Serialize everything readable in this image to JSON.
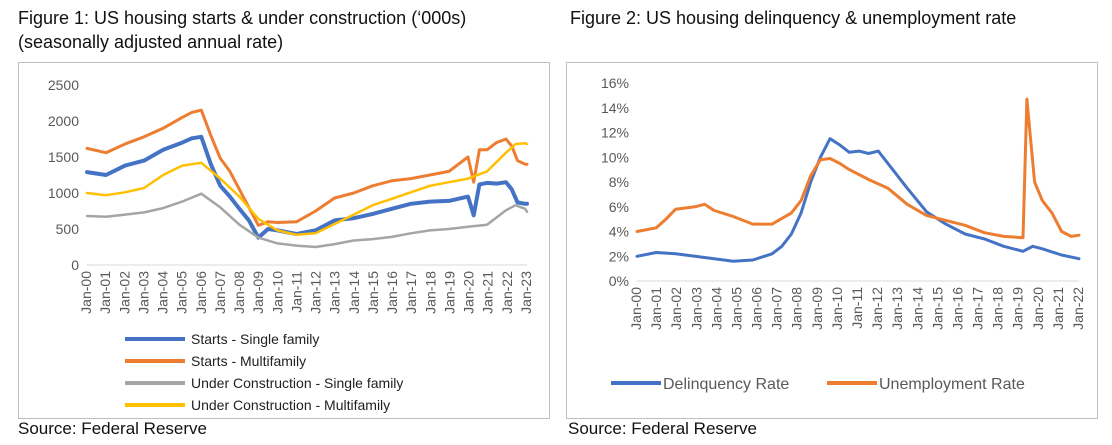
{
  "figure1": {
    "title_line1": "Figure 1: US housing starts & under construction (‘000s)",
    "title_line2": "(seasonally adjusted annual rate)",
    "source": "Source: Federal Reserve"
  },
  "figure2": {
    "title": "Figure 2: US housing delinquency & unemployment rate",
    "source": "Source: Federal Reserve"
  },
  "chart_data": [
    {
      "type": "line",
      "title": "Figure 1: US housing starts & under construction (‘000s)",
      "subtitle": "(seasonally adjusted annual rate)",
      "xlabel": "",
      "ylabel": "",
      "ylim": [
        0,
        2500
      ],
      "yticks": [
        "0",
        "500",
        "1000",
        "1500",
        "2000",
        "2500"
      ],
      "yticks_values": [
        0,
        500,
        1000,
        1500,
        2000,
        2500
      ],
      "xlim": [
        2000,
        2023.1
      ],
      "xticks": [
        "Jan-00",
        "Jan-01",
        "Jan-02",
        "Jan-03",
        "Jan-04",
        "Jan-05",
        "Jan-06",
        "Jan-07",
        "Jan-08",
        "Jan-09",
        "Jan-10",
        "Jan-11",
        "Jan-12",
        "Jan-13",
        "Jan-14",
        "Jan-15",
        "Jan-16",
        "Jan-17",
        "Jan-18",
        "Jan-19",
        "Jan-20",
        "Jan-21",
        "Jan-22",
        "Jan-23"
      ],
      "grid": false,
      "legend": "bottom",
      "series": [
        {
          "name": "Starts - Single family",
          "color": "#4472c4",
          "width": 4,
          "x": [
            2000,
            2001,
            2002,
            2003,
            2004,
            2005,
            2005.5,
            2006,
            2006.5,
            2007,
            2007.5,
            2008,
            2008.5,
            2009,
            2009.5,
            2010,
            2011,
            2012,
            2013,
            2014,
            2015,
            2016,
            2017,
            2018,
            2019,
            2020,
            2020.3,
            2020.6,
            2021,
            2021.5,
            2022,
            2022.3,
            2022.6,
            2023,
            2023.1
          ],
          "y": [
            1290,
            1250,
            1380,
            1450,
            1600,
            1700,
            1760,
            1780,
            1400,
            1100,
            950,
            780,
            620,
            380,
            500,
            480,
            430,
            480,
            620,
            650,
            710,
            780,
            850,
            880,
            890,
            950,
            690,
            1120,
            1140,
            1130,
            1150,
            1050,
            870,
            850,
            850
          ]
        },
        {
          "name": "Starts - Multifamily",
          "color": "#ed7d31",
          "width": 3,
          "x": [
            2000,
            2001,
            2002,
            2003,
            2004,
            2005,
            2005.5,
            2006,
            2006.5,
            2007,
            2007.5,
            2008,
            2008.5,
            2009,
            2009.5,
            2010,
            2011,
            2012,
            2013,
            2014,
            2015,
            2016,
            2017,
            2018,
            2019,
            2020,
            2020.3,
            2020.6,
            2021,
            2021.5,
            2022,
            2022.3,
            2022.6,
            2023,
            2023.1
          ],
          "y": [
            1620,
            1560,
            1680,
            1780,
            1900,
            2050,
            2120,
            2150,
            1800,
            1480,
            1300,
            1050,
            800,
            550,
            600,
            590,
            600,
            750,
            930,
            1000,
            1100,
            1170,
            1200,
            1250,
            1300,
            1500,
            1150,
            1600,
            1600,
            1700,
            1750,
            1650,
            1450,
            1400,
            1400
          ]
        },
        {
          "name": "Under Construction - Single family",
          "color": "#a5a5a5",
          "width": 2.5,
          "x": [
            2000,
            2001,
            2002,
            2003,
            2004,
            2005,
            2006,
            2007,
            2008,
            2009,
            2010,
            2011,
            2012,
            2013,
            2014,
            2015,
            2016,
            2017,
            2018,
            2019,
            2020,
            2021,
            2022,
            2022.5,
            2023,
            2023.1
          ],
          "y": [
            680,
            670,
            700,
            730,
            790,
            880,
            990,
            800,
            560,
            380,
            300,
            270,
            250,
            290,
            340,
            360,
            390,
            440,
            480,
            500,
            530,
            560,
            760,
            830,
            780,
            740
          ]
        },
        {
          "name": "Under Construction - Multifamily",
          "color": "#ffc000",
          "width": 2.5,
          "x": [
            2000,
            2001,
            2002,
            2003,
            2004,
            2005,
            2006,
            2007,
            2008,
            2009,
            2010,
            2011,
            2012,
            2013,
            2014,
            2015,
            2016,
            2017,
            2018,
            2019,
            2020,
            2021,
            2022,
            2022.5,
            2023,
            2023.1
          ],
          "y": [
            1000,
            970,
            1010,
            1070,
            1250,
            1380,
            1420,
            1200,
            950,
            640,
            480,
            420,
            440,
            570,
            700,
            830,
            920,
            1010,
            1100,
            1150,
            1200,
            1300,
            1560,
            1680,
            1690,
            1680
          ]
        }
      ]
    },
    {
      "type": "line",
      "title": "Figure 2: US housing delinquency & unemployment rate",
      "xlabel": "",
      "ylabel": "",
      "ylim": [
        0,
        16
      ],
      "yticks": [
        "0%",
        "2%",
        "4%",
        "6%",
        "8%",
        "10%",
        "12%",
        "14%",
        "16%"
      ],
      "yticks_values": [
        0,
        2,
        4,
        6,
        8,
        10,
        12,
        14,
        16
      ],
      "xlim": [
        2000,
        2022.9
      ],
      "xticks": [
        "Jan-00",
        "Jan-01",
        "Jan-02",
        "Jan-03",
        "Jan-04",
        "Jan-05",
        "Jan-06",
        "Jan-07",
        "Jan-08",
        "Jan-09",
        "Jan-10",
        "Jan-11",
        "Jan-12",
        "Jan-13",
        "Jan-14",
        "Jan-15",
        "Jan-16",
        "Jan-17",
        "Jan-18",
        "Jan-19",
        "Jan-20",
        "Jan-21",
        "Jan-22"
      ],
      "grid": false,
      "legend": "bottom",
      "series": [
        {
          "name": "Delinquency Rate",
          "color": "#4472c4",
          "width": 3,
          "x": [
            2000,
            2001,
            2002,
            2003,
            2004,
            2005,
            2006,
            2007,
            2007.5,
            2008,
            2008.5,
            2009,
            2009.5,
            2010,
            2010.5,
            2011,
            2011.5,
            2012,
            2012.5,
            2013,
            2014,
            2015,
            2016,
            2017,
            2018,
            2019,
            2020,
            2020.5,
            2021,
            2022,
            2022.9
          ],
          "y": [
            2.0,
            2.3,
            2.2,
            2.0,
            1.8,
            1.6,
            1.7,
            2.2,
            2.8,
            3.8,
            5.5,
            8.0,
            10.0,
            11.5,
            11.0,
            10.4,
            10.5,
            10.3,
            10.5,
            9.5,
            7.5,
            5.6,
            4.6,
            3.8,
            3.4,
            2.8,
            2.4,
            2.8,
            2.6,
            2.1,
            1.8
          ]
        },
        {
          "name": "Unemployment Rate",
          "color": "#ed7d31",
          "width": 3,
          "x": [
            2000,
            2001,
            2001.5,
            2002,
            2002.5,
            2003,
            2003.5,
            2004,
            2005,
            2006,
            2007,
            2008,
            2008.5,
            2009,
            2009.5,
            2010,
            2010.5,
            2011,
            2012,
            2013,
            2014,
            2015,
            2016,
            2017,
            2018,
            2019,
            2020,
            2020.2,
            2020.3,
            2020.6,
            2021,
            2021.5,
            2022,
            2022.5,
            2022.9
          ],
          "y": [
            4.0,
            4.3,
            5.0,
            5.8,
            5.9,
            6.0,
            6.2,
            5.7,
            5.2,
            4.6,
            4.6,
            5.5,
            6.5,
            8.5,
            9.8,
            9.9,
            9.5,
            9.0,
            8.2,
            7.5,
            6.2,
            5.3,
            4.9,
            4.5,
            3.9,
            3.6,
            3.5,
            14.7,
            13.0,
            8.0,
            6.5,
            5.5,
            4.0,
            3.6,
            3.7
          ]
        }
      ]
    }
  ]
}
